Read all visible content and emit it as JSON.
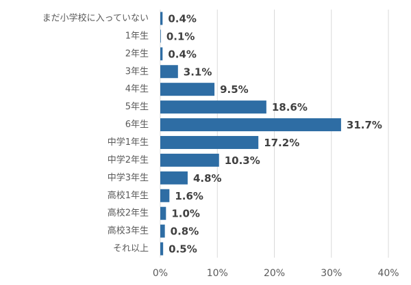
{
  "chart_data": {
    "type": "bar",
    "orientation": "horizontal",
    "categories": [
      "まだ小学校に入っていない",
      "1年生",
      "2年生",
      "3年生",
      "4年生",
      "5年生",
      "6年生",
      "中学1年生",
      "中学2年生",
      "中学3年生",
      "高校1年生",
      "高校2年生",
      "高校3年生",
      "それ以上"
    ],
    "values": [
      0.4,
      0.1,
      0.4,
      3.1,
      9.5,
      18.6,
      31.7,
      17.2,
      10.3,
      4.8,
      1.6,
      1.0,
      0.8,
      0.5
    ],
    "value_labels": [
      "0.4%",
      "0.1%",
      "0.4%",
      "3.1%",
      "9.5%",
      "18.6%",
      "31.7%",
      "17.2%",
      "10.3%",
      "4.8%",
      "1.6%",
      "1.0%",
      "0.8%",
      "0.5%"
    ],
    "color": "#2e6da4",
    "xlim": [
      0,
      40
    ],
    "xticks": [
      {
        "value": 0,
        "label": "0%"
      },
      {
        "value": 10,
        "label": "10%"
      },
      {
        "value": 20,
        "label": "20%"
      },
      {
        "value": 30,
        "label": "30%"
      },
      {
        "value": 40,
        "label": "40%"
      }
    ],
    "grid": true
  }
}
